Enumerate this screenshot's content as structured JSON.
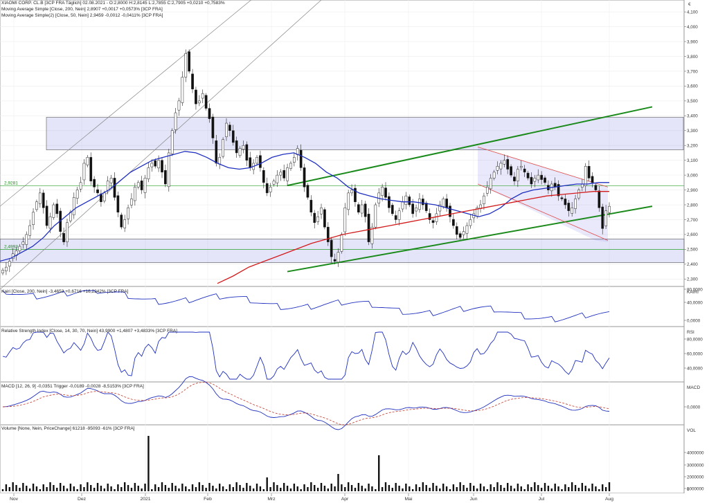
{
  "header": {
    "line1": "XIAOMI CORP. CL.B [3CP FRA Täglich] 02.08.2021 - O:2,8000 H:2,8145 L:2,7855 C:2,7905 +0,0210 +0,7583%",
    "ma200": "Moving Average Simple [Close, 200, Nein] 2,8907 +0,0017 +0,0573% [3CP FRA]",
    "ma50": "Moving Average Simple(2) [Close, 50, Nein] 2,9459 -0,0012 -0,0411% [3CP FRA]"
  },
  "panels": {
    "price_unit": "€",
    "kairi": {
      "legend": "Kairi [Close, 200, Nein] -3,4653 +0,6716 +16,2342% [3CP FRA]",
      "label": "KAIRI",
      "ticks": [
        "80,0000",
        "40,0000",
        "0,0000"
      ]
    },
    "rsi": {
      "legend": "Relative Strength Index [Close, 14, 30, 70, Nein] 43,9900 +1,4807 +3,4833% [3CP FRA]",
      "label": "RSI",
      "ticks": [
        "80,0000",
        "60,0000",
        "40,0000"
      ]
    },
    "macd": {
      "legend": "MACD [12, 26, 9] -0,0351 Trigger -0,0189 -0,0028 -8,5153% [3CP FRA]",
      "label": "MACD",
      "ticks": [
        "0,0000"
      ]
    },
    "volume": {
      "legend": "Volume [None, Nein, PriceChange] 61218 -95093 -61% [3CP FRA]",
      "label": "VOL",
      "ticks": [
        "4000000",
        "3000000",
        "2000000",
        "1000000",
        "0"
      ]
    }
  },
  "chart_data": {
    "type": "candlestick",
    "title": "XIAOMI CORP. CL.B [3CP FRA Täglich]",
    "x_ticks": [
      "Nov",
      "Dez",
      "2021",
      "Feb",
      "Mrz",
      "Apr",
      "Mai",
      "Jun",
      "Jul",
      "Aug"
    ],
    "y_ticks": [
      "2,300",
      "2,400",
      "2,500",
      "2,600",
      "2,700",
      "2,800",
      "2,900",
      "3,000",
      "3,100",
      "3,200",
      "3,300",
      "3,400",
      "3,500",
      "3,600",
      "3,700",
      "3,800",
      "3,900",
      "4,000",
      "4,100"
    ],
    "ylim": [
      2.25,
      4.18
    ],
    "markers": [
      {
        "label": "2,9281",
        "value": 2.9281
      },
      {
        "label": "2,4993",
        "value": 2.4993
      }
    ],
    "close_path": [
      2.36,
      2.38,
      2.42,
      2.47,
      2.49,
      2.52,
      2.55,
      2.6,
      2.66,
      2.75,
      2.82,
      2.88,
      2.78,
      2.66,
      2.72,
      2.8,
      2.74,
      2.62,
      2.55,
      2.68,
      2.75,
      2.85,
      2.9,
      2.95,
      3.08,
      3.12,
      2.96,
      2.92,
      2.88,
      2.82,
      2.88,
      2.96,
      2.98,
      2.85,
      2.75,
      2.65,
      2.7,
      2.78,
      2.84,
      2.92,
      2.95,
      2.9,
      2.98,
      3.05,
      3.08,
      3.06,
      3.1,
      3.02,
      2.94,
      3.15,
      3.3,
      3.42,
      3.5,
      3.66,
      3.82,
      3.7,
      3.58,
      3.48,
      3.5,
      3.55,
      3.45,
      3.38,
      3.25,
      3.08,
      3.12,
      3.24,
      3.35,
      3.3,
      3.22,
      3.15,
      3.18,
      3.2,
      3.1,
      3.05,
      3.08,
      3.12,
      3.05,
      2.95,
      2.88,
      2.92,
      2.96,
      3.0,
      3.02,
      2.98,
      3.05,
      3.08,
      3.12,
      3.18,
      3.05,
      2.92,
      2.85,
      2.75,
      2.68,
      2.72,
      2.78,
      2.65,
      2.55,
      2.45,
      2.42,
      2.48,
      2.6,
      2.78,
      2.88,
      2.9,
      2.82,
      2.75,
      2.8,
      2.72,
      2.55,
      2.65,
      2.8,
      2.88,
      2.92,
      2.85,
      2.78,
      2.74,
      2.7,
      2.76,
      2.82,
      2.86,
      2.8,
      2.74,
      2.78,
      2.84,
      2.8,
      2.76,
      2.7,
      2.68,
      2.74,
      2.8,
      2.84,
      2.78,
      2.72,
      2.66,
      2.6,
      2.58,
      2.62,
      2.66,
      2.7,
      2.74,
      2.78,
      2.8,
      2.86,
      2.92,
      2.98,
      3.02,
      3.06,
      3.08,
      3.1,
      3.04,
      3.0,
      2.96,
      3.04,
      3.06,
      3.02,
      2.98,
      2.94,
      2.98,
      3.0,
      2.97,
      2.95,
      2.9,
      2.94,
      2.92,
      2.86,
      2.84,
      2.8,
      2.76,
      2.78,
      2.84,
      2.9,
      2.94,
      3.06,
      2.98,
      2.95,
      2.9,
      2.78,
      2.64,
      2.76,
      2.79
    ],
    "ma50_path": [
      2.42,
      2.44,
      2.48,
      2.52,
      2.58,
      2.66,
      2.72,
      2.78,
      2.82,
      2.86,
      2.9,
      2.96,
      3.02,
      3.06,
      3.1,
      3.12,
      3.14,
      3.16,
      3.15,
      3.12,
      3.08,
      3.05,
      3.04,
      3.05,
      3.08,
      3.12,
      3.14,
      3.15,
      3.12,
      3.08,
      3.02,
      2.98,
      2.92,
      2.88,
      2.86,
      2.84,
      2.83,
      2.82,
      2.82,
      2.81,
      2.8,
      2.78,
      2.76,
      2.74,
      2.72,
      2.74,
      2.78,
      2.84,
      2.88,
      2.9,
      2.91,
      2.92,
      2.93,
      2.94,
      2.94,
      2.95,
      2.95
    ],
    "ma200_path": [
      2.27,
      2.32,
      2.38,
      2.42,
      2.46,
      2.5,
      2.54,
      2.57,
      2.6,
      2.62,
      2.64,
      2.66,
      2.68,
      2.7,
      2.72,
      2.74,
      2.76,
      2.78,
      2.8,
      2.82,
      2.84,
      2.86,
      2.87,
      2.88,
      2.89,
      2.89
    ]
  }
}
